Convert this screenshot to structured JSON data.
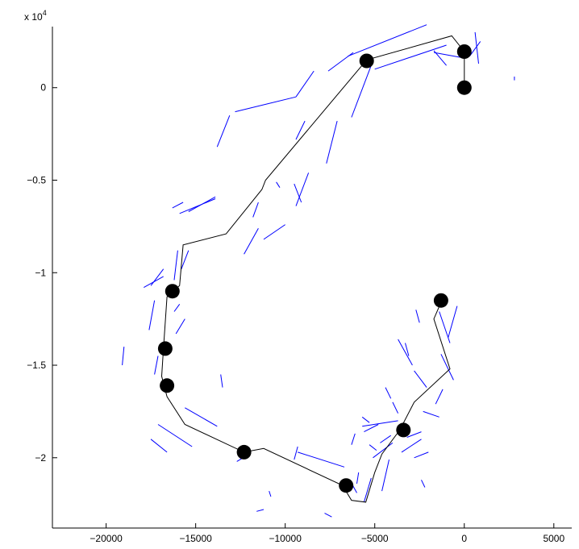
{
  "chart_data": {
    "type": "scatter",
    "title": "",
    "xlabel": "",
    "ylabel": "",
    "xlim": [
      -23000,
      6000
    ],
    "ylim": [
      -23800,
      3300
    ],
    "x_ticks": [
      -20000,
      -15000,
      -10000,
      -5000,
      0,
      5000
    ],
    "x_tick_labels": [
      "−20000",
      "−15000",
      "−10000",
      "−5000",
      "0",
      "5000"
    ],
    "y_ticks": [
      0,
      -5000,
      -10000,
      -15000,
      -20000
    ],
    "y_tick_labels": [
      "0",
      "−0.5",
      "−1",
      "−1.5",
      "−2"
    ],
    "y_multiplier": "x 10",
    "y_multiplier_exponent": "4",
    "grid": false,
    "colors": {
      "path": "#000000",
      "landmarks": "#000000",
      "segments": "#0000ff"
    },
    "series": [
      {
        "kind": "path",
        "points": [
          [
            0,
            0
          ],
          [
            0,
            1950
          ],
          [
            -700,
            2800
          ],
          [
            -5450,
            1500
          ],
          [
            -11100,
            -5000
          ],
          [
            -11300,
            -5500
          ],
          [
            -13300,
            -7900
          ],
          [
            -15700,
            -8500
          ],
          [
            -15900,
            -10700
          ],
          [
            -16600,
            -11300
          ],
          [
            -16800,
            -14100
          ],
          [
            -16900,
            -15600
          ],
          [
            -16600,
            -16700
          ],
          [
            -15600,
            -18200
          ],
          [
            -12300,
            -19700
          ],
          [
            -11200,
            -19500
          ],
          [
            -6800,
            -21500
          ],
          [
            -6300,
            -22300
          ],
          [
            -5500,
            -22400
          ],
          [
            -5000,
            -20800
          ],
          [
            -4600,
            -19800
          ],
          [
            -3600,
            -18500
          ],
          [
            -2800,
            -17000
          ],
          [
            -800,
            -15200
          ],
          [
            -1700,
            -12500
          ],
          [
            -1300,
            -11600
          ]
        ]
      },
      {
        "kind": "landmarks",
        "points": [
          [
            0,
            0
          ],
          [
            0,
            1950
          ],
          [
            -5450,
            1450
          ],
          [
            -16300,
            -11000
          ],
          [
            -16700,
            -14100
          ],
          [
            -16600,
            -16100
          ],
          [
            -12300,
            -19700
          ],
          [
            -6600,
            -21500
          ],
          [
            -3400,
            -18500
          ],
          [
            -1300,
            -11500
          ]
        ]
      },
      {
        "kind": "segments",
        "segments": [
          [
            [
              -6500,
              1700
            ],
            [
              -2100,
              3400
            ]
          ],
          [
            [
              -5000,
              1000
            ],
            [
              -1000,
              2300
            ]
          ],
          [
            [
              -1700,
              1900
            ],
            [
              0,
              1600
            ]
          ],
          [
            [
              -1000,
              1200
            ],
            [
              -1700,
              2000
            ]
          ],
          [
            [
              800,
              1300
            ],
            [
              600,
              3000
            ]
          ],
          [
            [
              300,
              1700
            ],
            [
              900,
              2500
            ]
          ],
          [
            [
              2800,
              600
            ],
            [
              2800,
              400
            ]
          ],
          [
            [
              -6200,
              1900
            ],
            [
              -7600,
              900
            ]
          ],
          [
            [
              -8400,
              900
            ],
            [
              -9400,
              -500
            ]
          ],
          [
            [
              -9400,
              -500
            ],
            [
              -12800,
              -1300
            ]
          ],
          [
            [
              -13100,
              -1500
            ],
            [
              -13800,
              -3200
            ]
          ],
          [
            [
              -5200,
              1200
            ],
            [
              -6300,
              -1600
            ]
          ],
          [
            [
              -7100,
              -1800
            ],
            [
              -7700,
              -4100
            ]
          ],
          [
            [
              -8900,
              -1800
            ],
            [
              -9400,
              -2800
            ]
          ],
          [
            [
              -8700,
              -4600
            ],
            [
              -9400,
              -6400
            ]
          ],
          [
            [
              -9100,
              -6200
            ],
            [
              -9500,
              -5200
            ]
          ],
          [
            [
              -10300,
              -5400
            ],
            [
              -10500,
              -5100
            ]
          ],
          [
            [
              -11500,
              -6200
            ],
            [
              -11800,
              -7000
            ]
          ],
          [
            [
              -10000,
              -7400
            ],
            [
              -11200,
              -8200
            ]
          ],
          [
            [
              -11500,
              -7600
            ],
            [
              -12300,
              -9000
            ]
          ],
          [
            [
              -13900,
              -5900
            ],
            [
              -15400,
              -6700
            ]
          ],
          [
            [
              -13900,
              -6000
            ],
            [
              -15900,
              -6800
            ]
          ],
          [
            [
              -15700,
              -6200
            ],
            [
              -16300,
              -6500
            ]
          ],
          [
            [
              -15400,
              -8800
            ],
            [
              -15800,
              -9800
            ]
          ],
          [
            [
              -16000,
              -8800
            ],
            [
              -16200,
              -10400
            ]
          ],
          [
            [
              -16800,
              -9800
            ],
            [
              -17500,
              -10700
            ]
          ],
          [
            [
              -16800,
              -10200
            ],
            [
              -17900,
              -10800
            ]
          ],
          [
            [
              -17300,
              -11500
            ],
            [
              -17600,
              -13100
            ]
          ],
          [
            [
              -17100,
              -14500
            ],
            [
              -17300,
              -15500
            ]
          ],
          [
            [
              -19000,
              -14000
            ],
            [
              -19100,
              -15000
            ]
          ],
          [
            [
              -15900,
              -11700
            ],
            [
              -16200,
              -12100
            ]
          ],
          [
            [
              -15600,
              -12500
            ],
            [
              -16100,
              -13300
            ]
          ],
          [
            [
              -13600,
              -15500
            ],
            [
              -13500,
              -16200
            ]
          ],
          [
            [
              -15600,
              -17300
            ],
            [
              -13800,
              -18300
            ]
          ],
          [
            [
              -17100,
              -18200
            ],
            [
              -15200,
              -19400
            ]
          ],
          [
            [
              -17500,
              -19000
            ],
            [
              -16600,
              -19700
            ]
          ],
          [
            [
              -9300,
              -19700
            ],
            [
              -6700,
              -20500
            ]
          ],
          [
            [
              -9300,
              -19400
            ],
            [
              -9500,
              -20100
            ]
          ],
          [
            [
              -6400,
              -21200
            ],
            [
              -6000,
              -21900
            ]
          ],
          [
            [
              -5200,
              -21100
            ],
            [
              -5600,
              -22400
            ]
          ],
          [
            [
              -5900,
              -20800
            ],
            [
              -6000,
              -21400
            ]
          ],
          [
            [
              -4200,
              -20100
            ],
            [
              -4600,
              -21800
            ]
          ],
          [
            [
              -4800,
              -18200
            ],
            [
              -5600,
              -18600
            ]
          ],
          [
            [
              -5700,
              -17800
            ],
            [
              -5300,
              -18100
            ]
          ],
          [
            [
              -4400,
              -16200
            ],
            [
              -4100,
              -16800
            ]
          ],
          [
            [
              -4000,
              -17000
            ],
            [
              -3700,
              -17600
            ]
          ],
          [
            [
              -2800,
              -15300
            ],
            [
              -2100,
              -16200
            ]
          ],
          [
            [
              -2300,
              -17500
            ],
            [
              -1400,
              -17800
            ]
          ],
          [
            [
              -1200,
              -16300
            ],
            [
              -1600,
              -17100
            ]
          ],
          [
            [
              -3300,
              -13800
            ],
            [
              -3100,
              -14500
            ]
          ],
          [
            [
              -3700,
              -13600
            ],
            [
              -2900,
              -15000
            ]
          ],
          [
            [
              -2700,
              -12000
            ],
            [
              -2500,
              -12700
            ]
          ],
          [
            [
              -1400,
              -12100
            ],
            [
              -800,
              -13800
            ]
          ],
          [
            [
              -1300,
              -14400
            ],
            [
              -600,
              -15800
            ]
          ],
          [
            [
              -400,
              -11800
            ],
            [
              -900,
              -13500
            ]
          ],
          [
            [
              -3200,
              -18900
            ],
            [
              -2400,
              -18600
            ]
          ],
          [
            [
              -3500,
              -19700
            ],
            [
              -2400,
              -19000
            ]
          ],
          [
            [
              -5700,
              -18300
            ],
            [
              -3700,
              -18000
            ]
          ],
          [
            [
              -4000,
              -19200
            ],
            [
              -5100,
              -20000
            ]
          ],
          [
            [
              -5300,
              -19300
            ],
            [
              -4900,
              -19600
            ]
          ],
          [
            [
              -4100,
              -18800
            ],
            [
              -4700,
              -19200
            ]
          ],
          [
            [
              -2400,
              -21200
            ],
            [
              -2200,
              -21600
            ]
          ],
          [
            [
              -7800,
              -23000
            ],
            [
              -7400,
              -23200
            ]
          ],
          [
            [
              -10800,
              -22100
            ],
            [
              -10900,
              -21800
            ]
          ],
          [
            [
              -11200,
              -22800
            ],
            [
              -11600,
              -22900
            ]
          ],
          [
            [
              -12000,
              -19800
            ],
            [
              -12700,
              -20200
            ]
          ],
          [
            [
              -2800,
              -20000
            ],
            [
              -2000,
              -19700
            ]
          ],
          [
            [
              -6100,
              -18700
            ],
            [
              -6300,
              -19300
            ]
          ]
        ]
      }
    ]
  }
}
